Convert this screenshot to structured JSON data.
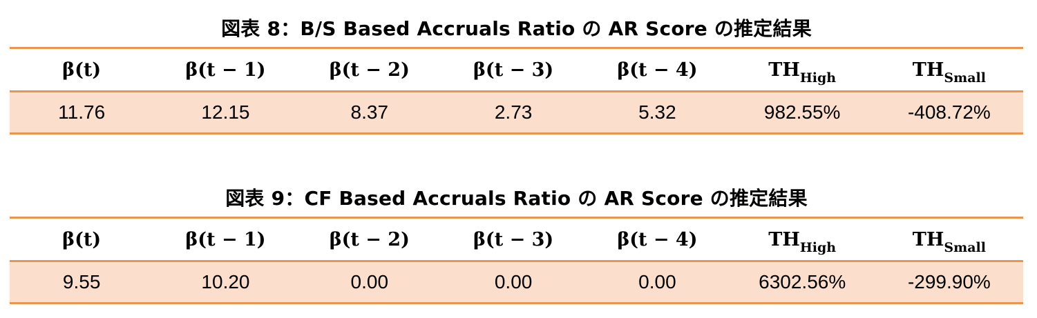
{
  "tables": [
    {
      "title": "図表 8：B/S Based Accruals Ratio の AR Score の推定結果",
      "headers": [
        {
          "main": "β(t)",
          "sub": ""
        },
        {
          "main": "β(t − 1)",
          "sub": ""
        },
        {
          "main": "β(t − 2)",
          "sub": ""
        },
        {
          "main": "β(t − 3)",
          "sub": ""
        },
        {
          "main": "β(t − 4)",
          "sub": ""
        },
        {
          "main": "TH",
          "sub": "High"
        },
        {
          "main": "TH",
          "sub": "Small"
        }
      ],
      "values": [
        "11.76",
        "12.15",
        "8.37",
        "2.73",
        "5.32",
        "982.55%",
        "-408.72%"
      ]
    },
    {
      "title": "図表 9：CF Based Accruals Ratio の AR Score の推定結果",
      "headers": [
        {
          "main": "β(t)",
          "sub": ""
        },
        {
          "main": "β(t − 1)",
          "sub": ""
        },
        {
          "main": "β(t − 2)",
          "sub": ""
        },
        {
          "main": "β(t − 3)",
          "sub": ""
        },
        {
          "main": "β(t − 4)",
          "sub": ""
        },
        {
          "main": "TH",
          "sub": "High"
        },
        {
          "main": "TH",
          "sub": "Small"
        }
      ],
      "values": [
        "9.55",
        "10.20",
        "0.00",
        "0.00",
        "0.00",
        "6302.56%",
        "-299.90%"
      ]
    }
  ],
  "colors": {
    "rule": "#e8954e",
    "row_fill": "#fbdecb"
  }
}
